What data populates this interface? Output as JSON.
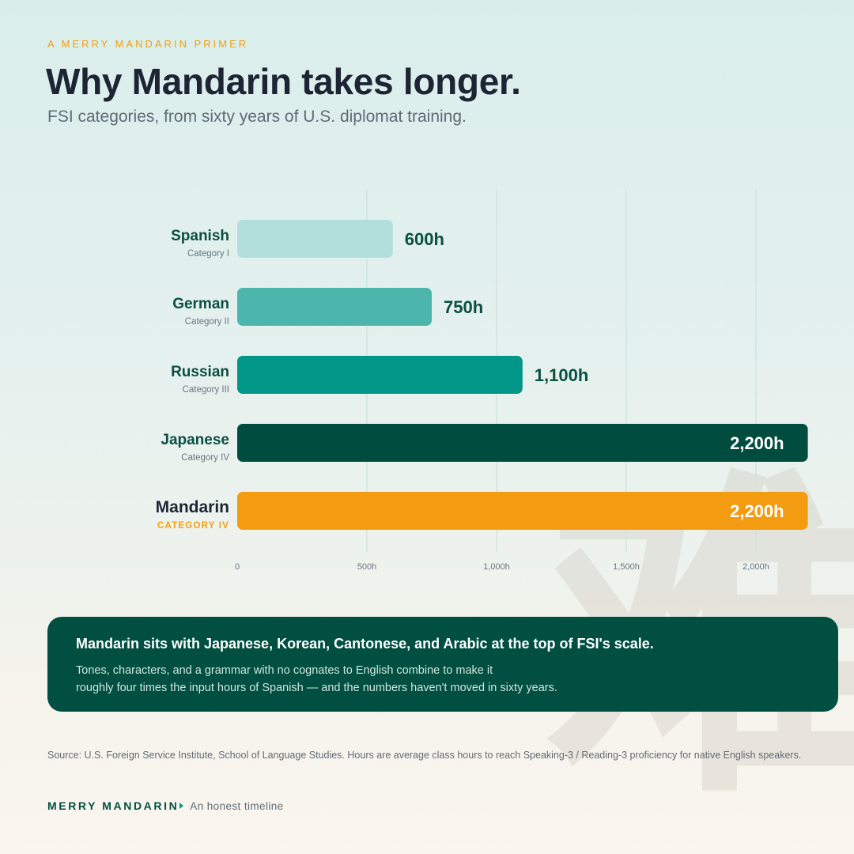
{
  "header": {
    "kicker": "A MERRY MANDARIN PRIMER",
    "title": "Why Mandarin takes longer.",
    "subtitle": "FSI categories, from sixty years of U.S. diplomat training."
  },
  "watermark": "难",
  "chart_data": {
    "type": "bar",
    "orientation": "horizontal",
    "categories": [
      "Spanish",
      "German",
      "Russian",
      "Japanese",
      "Mandarin"
    ],
    "category_sublabels": [
      "Category I",
      "Category II",
      "Category III",
      "Category IV",
      "CATEGORY IV"
    ],
    "values": [
      600,
      750,
      1100,
      2200,
      2200
    ],
    "value_labels": [
      "600h",
      "750h",
      "1,100h",
      "2,200h",
      "2,200h"
    ],
    "bar_colors": [
      "#b2dfdb",
      "#4db6ac",
      "#009688",
      "#004d40",
      "#f39c12"
    ],
    "x_ticks": [
      0,
      500,
      1000,
      1500,
      2000
    ],
    "x_tick_labels": [
      "0",
      "500h",
      "1,000h",
      "1,500h",
      "2,000h"
    ],
    "xlim": [
      0,
      2200
    ],
    "grid": true,
    "highlight": "Mandarin"
  },
  "callout": {
    "headline": "Mandarin sits with Japanese, Korean, Cantonese, and Arabic at the top of FSI's scale.",
    "body_line1": "Tones, characters, and a grammar with no cognates to English combine to make it",
    "body_line2": "roughly four times the input hours of Spanish — and the numbers haven't moved in sixty years."
  },
  "source": "Source: U.S. Foreign Service Institute, School of Language Studies. Hours are average class hours to reach Speaking-3 / Reading-3 proficiency for native English speakers.",
  "footer": {
    "brand": "MERRY MANDARIN",
    "tagline": "An honest timeline"
  },
  "colors": {
    "accent": "#f29f14",
    "dark_green": "#004f41",
    "teal": "#009688"
  }
}
